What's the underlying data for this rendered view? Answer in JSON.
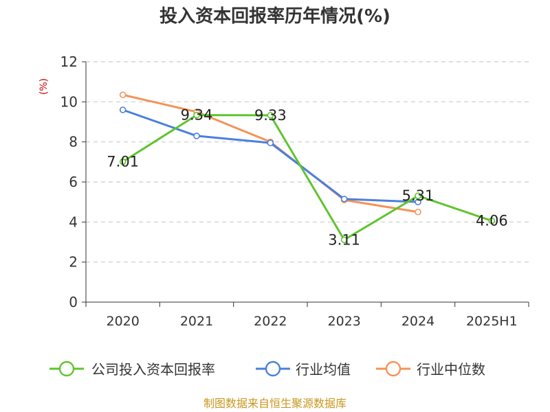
{
  "chart_data": {
    "type": "line",
    "title": "投入资本回报率历年情况(%)",
    "ylabel": "(%)",
    "xlabel": "",
    "categories": [
      "2020",
      "2021",
      "2022",
      "2023",
      "2024",
      "2025H1"
    ],
    "ylim": [
      0,
      12
    ],
    "yticks": [
      "0",
      "2",
      "4",
      "6",
      "8",
      "10",
      "12"
    ],
    "grid": true,
    "legend_position": "bottom",
    "series": [
      {
        "name": "公司投入资本回报率",
        "color": "#5ec42e",
        "values": [
          7.01,
          9.34,
          9.33,
          3.11,
          5.31,
          4.06
        ],
        "labels": [
          "7.01",
          "9.34",
          "9.33",
          "3.11",
          "5.31",
          "4.06"
        ]
      },
      {
        "name": "行业均值",
        "color": "#4a7fdc",
        "values": [
          9.6,
          8.3,
          7.95,
          5.15,
          5.0,
          null
        ]
      },
      {
        "name": "行业中位数",
        "color": "#f59257",
        "values": [
          10.35,
          9.5,
          8.0,
          5.1,
          4.5,
          null
        ]
      }
    ]
  },
  "source_text": "制图数据来自恒生聚源数据库"
}
